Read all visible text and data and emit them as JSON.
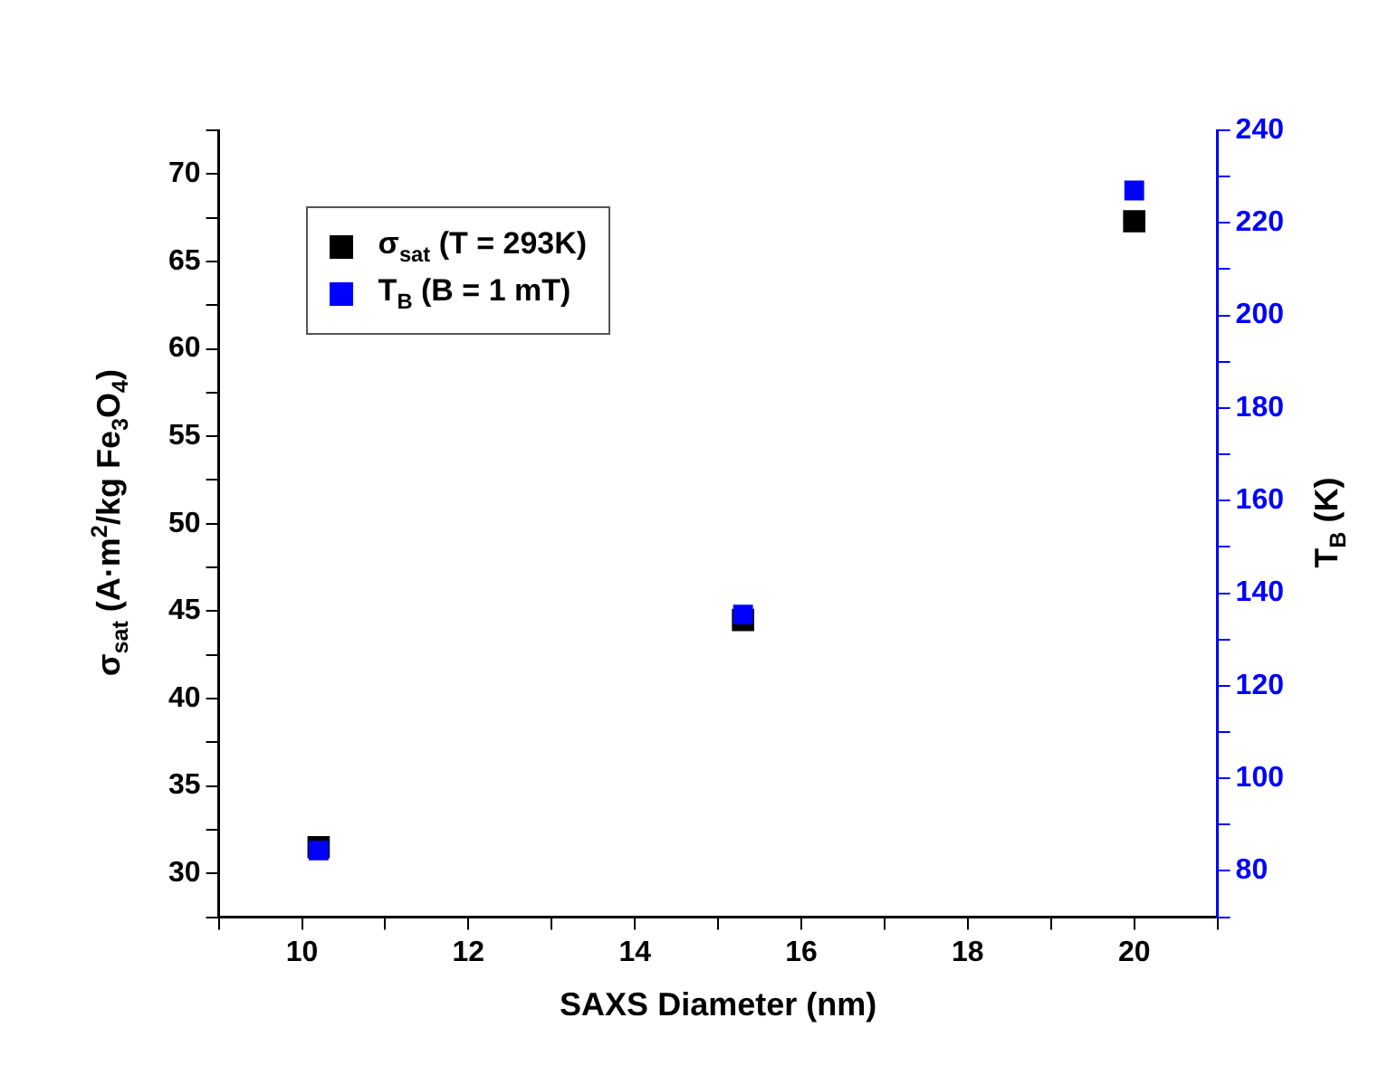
{
  "chart_data": {
    "type": "scatter",
    "xlabel": "SAXS Diameter (nm)",
    "ylabel": "σ$_{sat}$ (A·m$^{2}$/kg Fe$_{3}$O$_{4}$)",
    "y2label": "T$_{B}$ (K)",
    "x": [
      10.2,
      15.3,
      20
    ],
    "series": [
      {
        "name": "σ$_{sat}$ (T = 293K)",
        "color": "#000000",
        "values": [
          31.5,
          44.5,
          67.3
        ]
      },
      {
        "name": "T$_{B}$ (B = 1 mT)",
        "color": "#0000ff",
        "axis": "y2",
        "values": [
          84.4,
          135.4,
          227
        ]
      }
    ],
    "xlim": [
      9,
      21
    ],
    "xticks": [
      {
        "value": 9,
        "label": null
      },
      10,
      {
        "value": 11,
        "label": null
      },
      12,
      {
        "value": 13,
        "label": null
      },
      14,
      {
        "value": 15,
        "label": null
      },
      16,
      {
        "value": 17,
        "label": null
      },
      18,
      {
        "value": 19,
        "label": null
      },
      20,
      {
        "value": 21,
        "label": null
      }
    ],
    "ylim": [
      27.5,
      72.5
    ],
    "yticks": [
      {
        "value": 27.5,
        "label": null
      },
      30,
      {
        "value": 32.5,
        "label": null
      },
      35,
      {
        "value": 37.5,
        "label": null
      },
      40,
      {
        "value": 42.5,
        "label": null
      },
      45,
      {
        "value": 47.5,
        "label": null
      },
      50,
      {
        "value": 52.5,
        "label": null
      },
      55,
      {
        "value": 57.5,
        "label": null
      },
      60,
      {
        "value": 62.5,
        "label": null
      },
      65,
      {
        "value": 67.5,
        "label": null
      },
      70,
      {
        "value": 72.5,
        "label": null
      }
    ],
    "y2lim": [
      70,
      240
    ],
    "y2ticks": [
      {
        "value": 70,
        "label": null
      },
      80,
      {
        "value": 90,
        "label": null
      },
      100,
      {
        "value": 110,
        "label": null
      },
      120,
      {
        "value": 130,
        "label": null
      },
      140,
      {
        "value": 150,
        "label": null
      },
      160,
      {
        "value": 170,
        "label": null
      },
      180,
      {
        "value": 190,
        "label": null
      },
      200,
      {
        "value": 210,
        "label": null
      },
      220,
      {
        "value": 230,
        "label": null
      },
      240
    ],
    "grid": false,
    "legend": "top left",
    "marker": "square"
  }
}
